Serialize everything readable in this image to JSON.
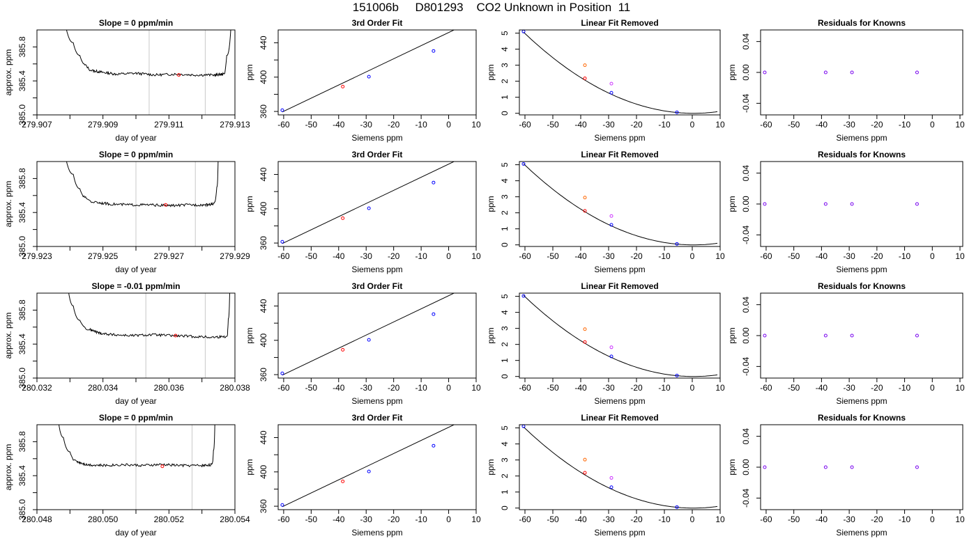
{
  "page": {
    "title": "151006b     D801293    CO2 Unknown in Position  11"
  },
  "colors": {
    "axis": "#000000",
    "trace": "#000000",
    "window_line": "#c8c8c8",
    "known_point": "#0000ff",
    "unknown_point": "#ff0000",
    "first_pass_point": "#ff6600",
    "second_pass_point": "#cc33ff",
    "residual_point": "#7700ee"
  },
  "chart_data": [
    {
      "type": "line",
      "title": "Slope =  0  ppm/min",
      "xlabel": "day of year",
      "ylabel": "approx. ppm",
      "xlim": [
        279.907,
        279.913
      ],
      "ylim": [
        385.0,
        386.0
      ],
      "xticks": [
        "279.907",
        "279.909",
        "279.911",
        "279.913"
      ],
      "yticks": [
        "385.0",
        "385.4",
        "385.8"
      ],
      "window": [
        279.9104,
        279.9121
      ],
      "series": [
        {
          "x": [
            279.9078,
            279.9081,
            279.9083,
            279.9085,
            279.9087,
            279.909,
            279.9094,
            279.91,
            279.9106,
            279.9112,
            279.9118,
            279.9124,
            279.91265,
            279.91275,
            279.9129
          ],
          "y": [
            386.2,
            385.85,
            385.7,
            385.58,
            385.52,
            385.5,
            385.48,
            385.49,
            385.47,
            385.48,
            385.47,
            385.47,
            385.48,
            385.7,
            386.2
          ]
        }
      ],
      "marker": {
        "x": 279.9113,
        "y": 385.47
      }
    },
    {
      "type": "scatter",
      "title": "3rd Order Fit",
      "xlabel": "Siemens ppm",
      "ylabel": "ppm",
      "xlim": [
        -62,
        10
      ],
      "ylim": [
        356,
        455
      ],
      "xticks": [
        -60,
        -50,
        -40,
        -30,
        -20,
        -10,
        0,
        10
      ],
      "yticks": [
        360,
        400,
        440
      ],
      "fit": {
        "slope": 1.53,
        "intercept": 452.0,
        "x_range": [
          -60.5,
          9
        ]
      },
      "known_points": [
        {
          "x": -60.5,
          "y": 361.5
        },
        {
          "x": -29,
          "y": 400.5
        },
        {
          "x": -5.5,
          "y": 430.5
        }
      ],
      "unknown_points": [
        {
          "x": -38.5,
          "y": 389.0
        }
      ]
    },
    {
      "type": "scatter",
      "title": "Linear Fit Removed",
      "xlabel": "Siemens ppm",
      "ylabel": "ppm",
      "xlim": [
        -62,
        10
      ],
      "ylim": [
        -0.1,
        5.2
      ],
      "xticks": [
        -60,
        -50,
        -40,
        -30,
        -20,
        -10,
        0,
        10
      ],
      "yticks": [
        0,
        1,
        2,
        3,
        4,
        5
      ],
      "fit": {
        "a": 0.00136,
        "vertex_x": 0.5,
        "x_range": [
          -60.5,
          9
        ]
      },
      "known_points": [
        {
          "x": -60.5,
          "y": 5.1
        },
        {
          "x": -29,
          "y": 1.28
        },
        {
          "x": -5.5,
          "y": 0.06
        }
      ],
      "unknown_points": [
        {
          "x": -38.5,
          "y": 2.18
        }
      ],
      "first_pass_points": [
        {
          "x": -38.5,
          "y": 3.0
        }
      ],
      "second_pass_points": [
        {
          "x": -29,
          "y": 1.85
        }
      ]
    },
    {
      "type": "scatter",
      "title": "Residuals for Knowns",
      "xlabel": "Siemens ppm",
      "ylabel": "ppm",
      "xlim": [
        -62,
        11
      ],
      "ylim": [
        -0.055,
        0.055
      ],
      "xticks": [
        -60,
        -50,
        -40,
        -30,
        -20,
        -10,
        0,
        10
      ],
      "yticks": [
        "-0.04",
        "0.00",
        "0.04"
      ],
      "points": [
        {
          "x": -60.5,
          "y": 0
        },
        {
          "x": -38.5,
          "y": 0
        },
        {
          "x": -29,
          "y": 0
        },
        {
          "x": -5.5,
          "y": 0
        }
      ]
    },
    {
      "type": "line",
      "title": "Slope =  0  ppm/min",
      "xlabel": "day of year",
      "ylabel": "approx. ppm",
      "xlim": [
        279.923,
        279.929
      ],
      "ylim": [
        385.0,
        386.0
      ],
      "xticks": [
        "279.923",
        "279.925",
        "279.927",
        "279.929"
      ],
      "yticks": [
        "385.0",
        "385.4",
        "385.8"
      ],
      "window": [
        279.926,
        279.9278
      ],
      "series": [
        {
          "x": [
            279.9238,
            279.9241,
            279.9243,
            279.9245,
            279.9248,
            279.9252,
            279.9258,
            279.9264,
            279.927,
            279.9276,
            279.9281,
            279.92835,
            279.92845,
            279.9285
          ],
          "y": [
            386.2,
            385.85,
            385.68,
            385.57,
            385.52,
            385.5,
            385.49,
            385.49,
            385.48,
            385.49,
            385.49,
            385.5,
            385.7,
            386.2
          ]
        }
      ],
      "marker": {
        "x": 279.9269,
        "y": 385.49
      }
    },
    {
      "type": "scatter",
      "title": "3rd Order Fit",
      "xlabel": "Siemens ppm",
      "ylabel": "ppm",
      "xlim": [
        -62,
        10
      ],
      "ylim": [
        356,
        455
      ],
      "xticks": [
        -60,
        -50,
        -40,
        -30,
        -20,
        -10,
        0,
        10
      ],
      "yticks": [
        360,
        400,
        440
      ],
      "fit": {
        "slope": 1.53,
        "intercept": 452.0,
        "x_range": [
          -60.5,
          9
        ]
      },
      "known_points": [
        {
          "x": -60.5,
          "y": 361.5
        },
        {
          "x": -29,
          "y": 400.5
        },
        {
          "x": -5.5,
          "y": 430.5
        }
      ],
      "unknown_points": [
        {
          "x": -38.5,
          "y": 389.0
        }
      ]
    },
    {
      "type": "scatter",
      "title": "Linear Fit Removed",
      "xlabel": "Siemens ppm",
      "ylabel": "ppm",
      "xlim": [
        -62,
        10
      ],
      "ylim": [
        -0.1,
        5.2
      ],
      "xticks": [
        -60,
        -50,
        -40,
        -30,
        -20,
        -10,
        0,
        10
      ],
      "yticks": [
        0,
        1,
        2,
        3,
        4,
        5
      ],
      "fit": {
        "a": 0.00136,
        "vertex_x": 0.5,
        "x_range": [
          -60.5,
          9
        ]
      },
      "known_points": [
        {
          "x": -60.5,
          "y": 5.05
        },
        {
          "x": -29,
          "y": 1.25
        },
        {
          "x": -5.5,
          "y": 0.06
        }
      ],
      "unknown_points": [
        {
          "x": -38.5,
          "y": 2.12
        }
      ],
      "first_pass_points": [
        {
          "x": -38.5,
          "y": 2.95
        }
      ],
      "second_pass_points": [
        {
          "x": -29,
          "y": 1.8
        }
      ]
    },
    {
      "type": "scatter",
      "title": "Residuals for Knowns",
      "xlabel": "Siemens ppm",
      "ylabel": "ppm",
      "xlim": [
        -62,
        11
      ],
      "ylim": [
        -0.055,
        0.055
      ],
      "xticks": [
        -60,
        -50,
        -40,
        -30,
        -20,
        -10,
        0,
        10
      ],
      "yticks": [
        "-0.04",
        "0.00",
        "0.04"
      ],
      "points": [
        {
          "x": -60.5,
          "y": 0
        },
        {
          "x": -38.5,
          "y": 0
        },
        {
          "x": -29,
          "y": 0
        },
        {
          "x": -5.5,
          "y": 0
        }
      ]
    },
    {
      "type": "line",
      "title": "Slope =  -0.01  ppm/min",
      "xlabel": "day of year",
      "ylabel": "approx. ppm",
      "xlim": [
        280.032,
        280.038
      ],
      "ylim": [
        385.0,
        386.0
      ],
      "xticks": [
        "280.032",
        "280.034",
        "280.036",
        "280.038"
      ],
      "yticks": [
        "385.0",
        "385.4",
        "385.8"
      ],
      "window": [
        280.0353,
        280.0371
      ],
      "series": [
        {
          "x": [
            280.0329,
            280.0331,
            280.0333,
            280.0336,
            280.0339,
            280.0343,
            280.0349,
            280.0355,
            280.0361,
            280.0367,
            280.0373,
            280.03775,
            280.0378,
            280.03785
          ],
          "y": [
            386.2,
            385.85,
            385.68,
            385.57,
            385.53,
            385.51,
            385.5,
            385.51,
            385.5,
            385.49,
            385.48,
            385.49,
            385.7,
            386.2
          ]
        }
      ],
      "marker": {
        "x": 280.0362,
        "y": 385.5
      }
    },
    {
      "type": "scatter",
      "title": "3rd Order Fit",
      "xlabel": "Siemens ppm",
      "ylabel": "ppm",
      "xlim": [
        -62,
        10
      ],
      "ylim": [
        356,
        455
      ],
      "xticks": [
        -60,
        -50,
        -40,
        -30,
        -20,
        -10,
        0,
        10
      ],
      "yticks": [
        360,
        400,
        440
      ],
      "fit": {
        "slope": 1.53,
        "intercept": 452.0,
        "x_range": [
          -60.5,
          9
        ]
      },
      "known_points": [
        {
          "x": -60.5,
          "y": 361.5
        },
        {
          "x": -29,
          "y": 400.5
        },
        {
          "x": -5.5,
          "y": 430.5
        }
      ],
      "unknown_points": [
        {
          "x": -38.5,
          "y": 389.0
        }
      ]
    },
    {
      "type": "scatter",
      "title": "Linear Fit Removed",
      "xlabel": "Siemens ppm",
      "ylabel": "ppm",
      "xlim": [
        -62,
        10
      ],
      "ylim": [
        -0.1,
        5.2
      ],
      "xticks": [
        -60,
        -50,
        -40,
        -30,
        -20,
        -10,
        0,
        10
      ],
      "yticks": [
        0,
        1,
        2,
        3,
        4,
        5
      ],
      "fit": {
        "a": 0.00136,
        "vertex_x": 0.5,
        "x_range": [
          -60.5,
          9
        ]
      },
      "known_points": [
        {
          "x": -60.5,
          "y": 5.02
        },
        {
          "x": -29,
          "y": 1.25
        },
        {
          "x": -5.5,
          "y": 0.06
        }
      ],
      "unknown_points": [
        {
          "x": -38.5,
          "y": 2.15
        }
      ],
      "first_pass_points": [
        {
          "x": -38.5,
          "y": 2.95
        }
      ],
      "second_pass_points": [
        {
          "x": -29,
          "y": 1.82
        }
      ]
    },
    {
      "type": "scatter",
      "title": "Residuals for Knowns",
      "xlabel": "Siemens ppm",
      "ylabel": "ppm",
      "xlim": [
        -62,
        11
      ],
      "ylim": [
        -0.055,
        0.055
      ],
      "xticks": [
        -60,
        -50,
        -40,
        -30,
        -20,
        -10,
        0,
        10
      ],
      "yticks": [
        "-0.04",
        "0.00",
        "0.04"
      ],
      "points": [
        {
          "x": -60.5,
          "y": 0
        },
        {
          "x": -38.5,
          "y": 0
        },
        {
          "x": -29,
          "y": 0
        },
        {
          "x": -5.5,
          "y": 0
        }
      ]
    },
    {
      "type": "line",
      "title": "Slope =  0  ppm/min",
      "xlabel": "day of year",
      "ylabel": "approx. ppm",
      "xlim": [
        280.048,
        280.054
      ],
      "ylim": [
        385.0,
        386.0
      ],
      "xticks": [
        "280.048",
        "280.050",
        "280.052",
        "280.054"
      ],
      "yticks": [
        "385.0",
        "385.4",
        "385.8"
      ],
      "window": [
        280.051,
        280.0527
      ],
      "series": [
        {
          "x": [
            280.0486,
            280.0488,
            280.049,
            280.0492,
            280.0495,
            280.05,
            280.0506,
            280.0512,
            280.0518,
            280.0524,
            280.053,
            280.0533,
            280.05335,
            280.0534
          ],
          "y": [
            386.2,
            385.85,
            385.68,
            385.57,
            385.53,
            385.52,
            385.53,
            385.52,
            385.53,
            385.52,
            385.52,
            385.53,
            385.7,
            386.2
          ]
        }
      ],
      "marker": {
        "x": 280.0518,
        "y": 385.51
      }
    },
    {
      "type": "scatter",
      "title": "3rd Order Fit",
      "xlabel": "Siemens ppm",
      "ylabel": "ppm",
      "xlim": [
        -62,
        10
      ],
      "ylim": [
        356,
        455
      ],
      "xticks": [
        -60,
        -50,
        -40,
        -30,
        -20,
        -10,
        0,
        10
      ],
      "yticks": [
        360,
        400,
        440
      ],
      "fit": {
        "slope": 1.53,
        "intercept": 452.0,
        "x_range": [
          -60.5,
          9
        ]
      },
      "known_points": [
        {
          "x": -60.5,
          "y": 361.5
        },
        {
          "x": -29,
          "y": 400.5
        },
        {
          "x": -5.5,
          "y": 430.5
        }
      ],
      "unknown_points": [
        {
          "x": -38.5,
          "y": 389.0
        }
      ]
    },
    {
      "type": "scatter",
      "title": "Linear Fit Removed",
      "xlabel": "Siemens ppm",
      "ylabel": "ppm",
      "xlim": [
        -62,
        10
      ],
      "ylim": [
        -0.1,
        5.2
      ],
      "xticks": [
        -60,
        -50,
        -40,
        -30,
        -20,
        -10,
        0,
        10
      ],
      "yticks": [
        0,
        1,
        2,
        3,
        4,
        5
      ],
      "fit": {
        "a": 0.00136,
        "vertex_x": 0.5,
        "x_range": [
          -60.5,
          9
        ]
      },
      "known_points": [
        {
          "x": -60.5,
          "y": 5.1
        },
        {
          "x": -29,
          "y": 1.3
        },
        {
          "x": -5.5,
          "y": 0.06
        }
      ],
      "unknown_points": [
        {
          "x": -38.5,
          "y": 2.2
        }
      ],
      "first_pass_points": [
        {
          "x": -38.5,
          "y": 3.02
        }
      ],
      "second_pass_points": [
        {
          "x": -29,
          "y": 1.88
        }
      ]
    },
    {
      "type": "scatter",
      "title": "Residuals for Knowns",
      "xlabel": "Siemens ppm",
      "ylabel": "ppm",
      "xlim": [
        -62,
        11
      ],
      "ylim": [
        -0.055,
        0.055
      ],
      "xticks": [
        -60,
        -50,
        -40,
        -30,
        -20,
        -10,
        0,
        10
      ],
      "yticks": [
        "-0.04",
        "0.00",
        "0.04"
      ],
      "points": [
        {
          "x": -60.5,
          "y": 0
        },
        {
          "x": -38.5,
          "y": 0
        },
        {
          "x": -29,
          "y": 0
        },
        {
          "x": -5.5,
          "y": 0
        }
      ]
    }
  ]
}
